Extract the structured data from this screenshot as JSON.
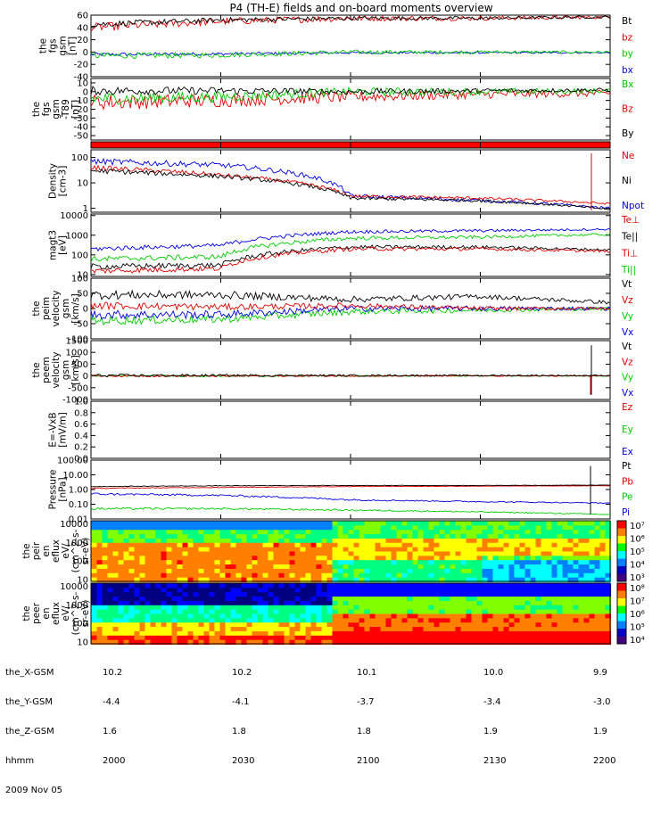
{
  "title": "P4 (TH-E) fields and on-board moments overview",
  "colors": {
    "black": "#000000",
    "red": "#dd0000",
    "green": "#00cc00",
    "blue": "#0000dd",
    "redbar": "#ff0000"
  },
  "panels": [
    {
      "ylabel": [
        "the",
        "fgs",
        "gsm",
        "[nT]"
      ],
      "ticks": [
        "60",
        "40",
        "20",
        "0",
        "-20",
        "-40"
      ],
      "tickvals": [
        60,
        40,
        20,
        0,
        -20,
        -40
      ],
      "ylim": [
        -40,
        60
      ],
      "log": false,
      "legend": [
        {
          "text": "Bt",
          "color": "black"
        },
        {
          "text": "bz",
          "color": "red"
        },
        {
          "text": "by",
          "color": "green"
        },
        {
          "text": "bx",
          "color": "blue"
        }
      ]
    },
    {
      "ylabel": [
        "the",
        "fgs",
        "gsm",
        "-T89",
        "[nT]"
      ],
      "ticks": [
        "10",
        "0",
        "-10",
        "-20",
        "-30",
        "-40",
        "-50"
      ],
      "tickvals": [
        10,
        0,
        -10,
        -20,
        -30,
        -40,
        -50
      ],
      "ylim": [
        -55,
        15
      ],
      "log": false,
      "legend": [
        {
          "text": "Bx",
          "color": "green"
        },
        {
          "text": "Bz",
          "color": "red"
        },
        {
          "text": "By",
          "color": "black"
        }
      ]
    },
    {
      "ylabel": [],
      "ticks": [],
      "tickvals": [],
      "ylim": [
        0,
        1
      ],
      "log": false,
      "legend": []
    },
    {
      "ylabel": [
        "Density",
        "[cm-3]"
      ],
      "ticks": [
        "100",
        "10",
        "1"
      ],
      "tickvals": [
        100,
        10,
        1
      ],
      "ylim": [
        0.7,
        200
      ],
      "log": true,
      "legend": [
        {
          "text": "Ne",
          "color": "red"
        },
        {
          "text": "Ni",
          "color": "black"
        },
        {
          "text": "Npot",
          "color": "blue"
        }
      ]
    },
    {
      "ylabel": [
        "magt3",
        "[eV]"
      ],
      "ticks": [
        "10000",
        "1000",
        "100",
        "10"
      ],
      "tickvals": [
        10000,
        1000,
        100,
        10
      ],
      "ylim": [
        8,
        12000
      ],
      "log": true,
      "legend": [
        {
          "text": "Te⊥",
          "color": "red"
        },
        {
          "text": "Te||",
          "color": "black"
        },
        {
          "text": "Ti⊥",
          "color": "red"
        },
        {
          "text": "Ti||",
          "color": "green"
        }
      ]
    },
    {
      "ylabel": [
        "the",
        "peim",
        "velocity",
        "gsm",
        "[km/s]"
      ],
      "ticks": [
        "100",
        "50",
        "0",
        "-50",
        "-100"
      ],
      "tickvals": [
        100,
        50,
        0,
        -50,
        -100
      ],
      "ylim": [
        -100,
        100
      ],
      "log": false,
      "legend": [
        {
          "text": "Vt",
          "color": "black"
        },
        {
          "text": "Vz",
          "color": "red"
        },
        {
          "text": "Vy",
          "color": "green"
        },
        {
          "text": "Vx",
          "color": "blue"
        }
      ]
    },
    {
      "ylabel": [
        "the",
        "peem",
        "velocity",
        "gsm",
        "[km/s]"
      ],
      "ticks": [
        "1500",
        "1000",
        "500",
        "0",
        "-500",
        "-1000"
      ],
      "tickvals": [
        1500,
        1000,
        500,
        0,
        -500,
        -1000
      ],
      "ylim": [
        -1000,
        1500
      ],
      "log": false,
      "legend": [
        {
          "text": "Vt",
          "color": "black"
        },
        {
          "text": "Vz",
          "color": "red"
        },
        {
          "text": "Vy",
          "color": "green"
        },
        {
          "text": "Vx",
          "color": "blue"
        }
      ]
    },
    {
      "ylabel": [
        "E=-VxB",
        "[mV/m]"
      ],
      "ticks": [
        "1.0",
        "0.8",
        "0.6",
        "0.4",
        "0.2",
        "0.0"
      ],
      "tickvals": [
        1,
        0.8,
        0.6,
        0.4,
        0.2,
        0
      ],
      "ylim": [
        0,
        1
      ],
      "log": false,
      "legend": [
        {
          "text": "Ez",
          "color": "red"
        },
        {
          "text": "Ey",
          "color": "green"
        },
        {
          "text": "Ex",
          "color": "blue"
        }
      ]
    },
    {
      "ylabel": [
        "Pressure",
        "[nPa]"
      ],
      "ticks": [
        "100.00",
        "10.00",
        "1.00",
        "0.10",
        "0.01"
      ],
      "tickvals": [
        100,
        10,
        1,
        0.1,
        0.01
      ],
      "ylim": [
        0.01,
        100
      ],
      "log": true,
      "legend": [
        {
          "text": "Pt",
          "color": "black"
        },
        {
          "text": "Pb",
          "color": "red"
        },
        {
          "text": "Pe",
          "color": "green"
        },
        {
          "text": "Pi",
          "color": "blue"
        }
      ]
    },
    {
      "ylabel": [
        "the",
        "peir",
        "en",
        "eflux",
        "eV/",
        "(cm^2-s-",
        "sr-eV)"
      ],
      "ticks": [
        "10000",
        "1000",
        "100",
        "10"
      ],
      "tickvals": [
        10000,
        1000,
        100,
        10
      ],
      "ylim": [
        8,
        15000
      ],
      "log": true,
      "colorbar": [
        "10⁷",
        "10⁶",
        "10⁵",
        "10⁴",
        "10³"
      ],
      "legend": []
    },
    {
      "ylabel": [
        "the",
        "peer",
        "en",
        "eflux",
        "eV/",
        "(cm^2-s-",
        "sr-eV)"
      ],
      "ticks": [
        "10000",
        "1000",
        "100",
        "10"
      ],
      "tickvals": [
        10000,
        1000,
        100,
        10
      ],
      "ylim": [
        8,
        15000
      ],
      "log": true,
      "colorbar": [
        "10⁸",
        "10⁷",
        "10⁶",
        "10⁵",
        "10⁴"
      ],
      "legend": []
    }
  ],
  "footer": {
    "row_labels": [
      "the_X-GSM",
      "the_Y-GSM",
      "the_Z-GSM",
      "hhmm",
      "2009 Nov 05"
    ],
    "columns": [
      {
        "vals": [
          "10.2",
          "-4.4",
          "1.6",
          "2000"
        ]
      },
      {
        "vals": [
          "10.2",
          "-4.1",
          "1.8",
          "2030"
        ]
      },
      {
        "vals": [
          "10.1",
          "-3.7",
          "1.8",
          "2100"
        ]
      },
      {
        "vals": [
          "10.0",
          "-3.4",
          "1.9",
          "2130"
        ]
      },
      {
        "vals": [
          "9.9",
          "-3.0",
          "1.9",
          "2200"
        ]
      }
    ]
  },
  "chart_data": {
    "type": "line",
    "title": "P4 (TH-E) fields and on-board moments overview",
    "x_tick_labels": [
      "2000",
      "2030",
      "2100",
      "2130",
      "2200"
    ],
    "xlabel": "hhmm",
    "date": "2009 Nov 05",
    "x_range": [
      "2000",
      "2200"
    ],
    "series": [
      {
        "panel": "fgs gsm",
        "name": "Bt",
        "values_approx": [
          45,
          52,
          55,
          55,
          57
        ]
      },
      {
        "panel": "fgs gsm",
        "name": "bz",
        "values_approx": [
          40,
          50,
          55,
          55,
          57
        ]
      },
      {
        "panel": "fgs gsm",
        "name": "by",
        "values_approx": [
          -5,
          -5,
          0,
          0,
          0
        ]
      },
      {
        "panel": "fgs gsm",
        "name": "bx",
        "values_approx": [
          -4,
          -3,
          -1,
          -1,
          -1
        ]
      },
      {
        "panel": "Density",
        "name": "Ne",
        "values_approx": [
          40,
          20,
          3,
          2.5,
          1.5
        ]
      },
      {
        "panel": "Density",
        "name": "Npot",
        "values_approx": [
          80,
          50,
          3,
          2,
          1
        ]
      },
      {
        "panel": "magt3",
        "name": "Ti||",
        "values_approx": [
          60,
          80,
          700,
          800,
          1100
        ]
      },
      {
        "panel": "magt3",
        "name": "Te||",
        "values_approx": [
          20,
          25,
          200,
          200,
          150
        ]
      },
      {
        "panel": "Pressure",
        "name": "Pb",
        "values_approx": [
          1.2,
          1.4,
          1.6,
          1.7,
          1.8
        ]
      },
      {
        "panel": "Pressure",
        "name": "Pi",
        "values_approx": [
          0.5,
          0.4,
          0.2,
          0.15,
          0.12
        ]
      },
      {
        "panel": "Pressure",
        "name": "Pe",
        "values_approx": [
          0.05,
          0.05,
          0.04,
          0.03,
          0.02
        ]
      }
    ]
  }
}
